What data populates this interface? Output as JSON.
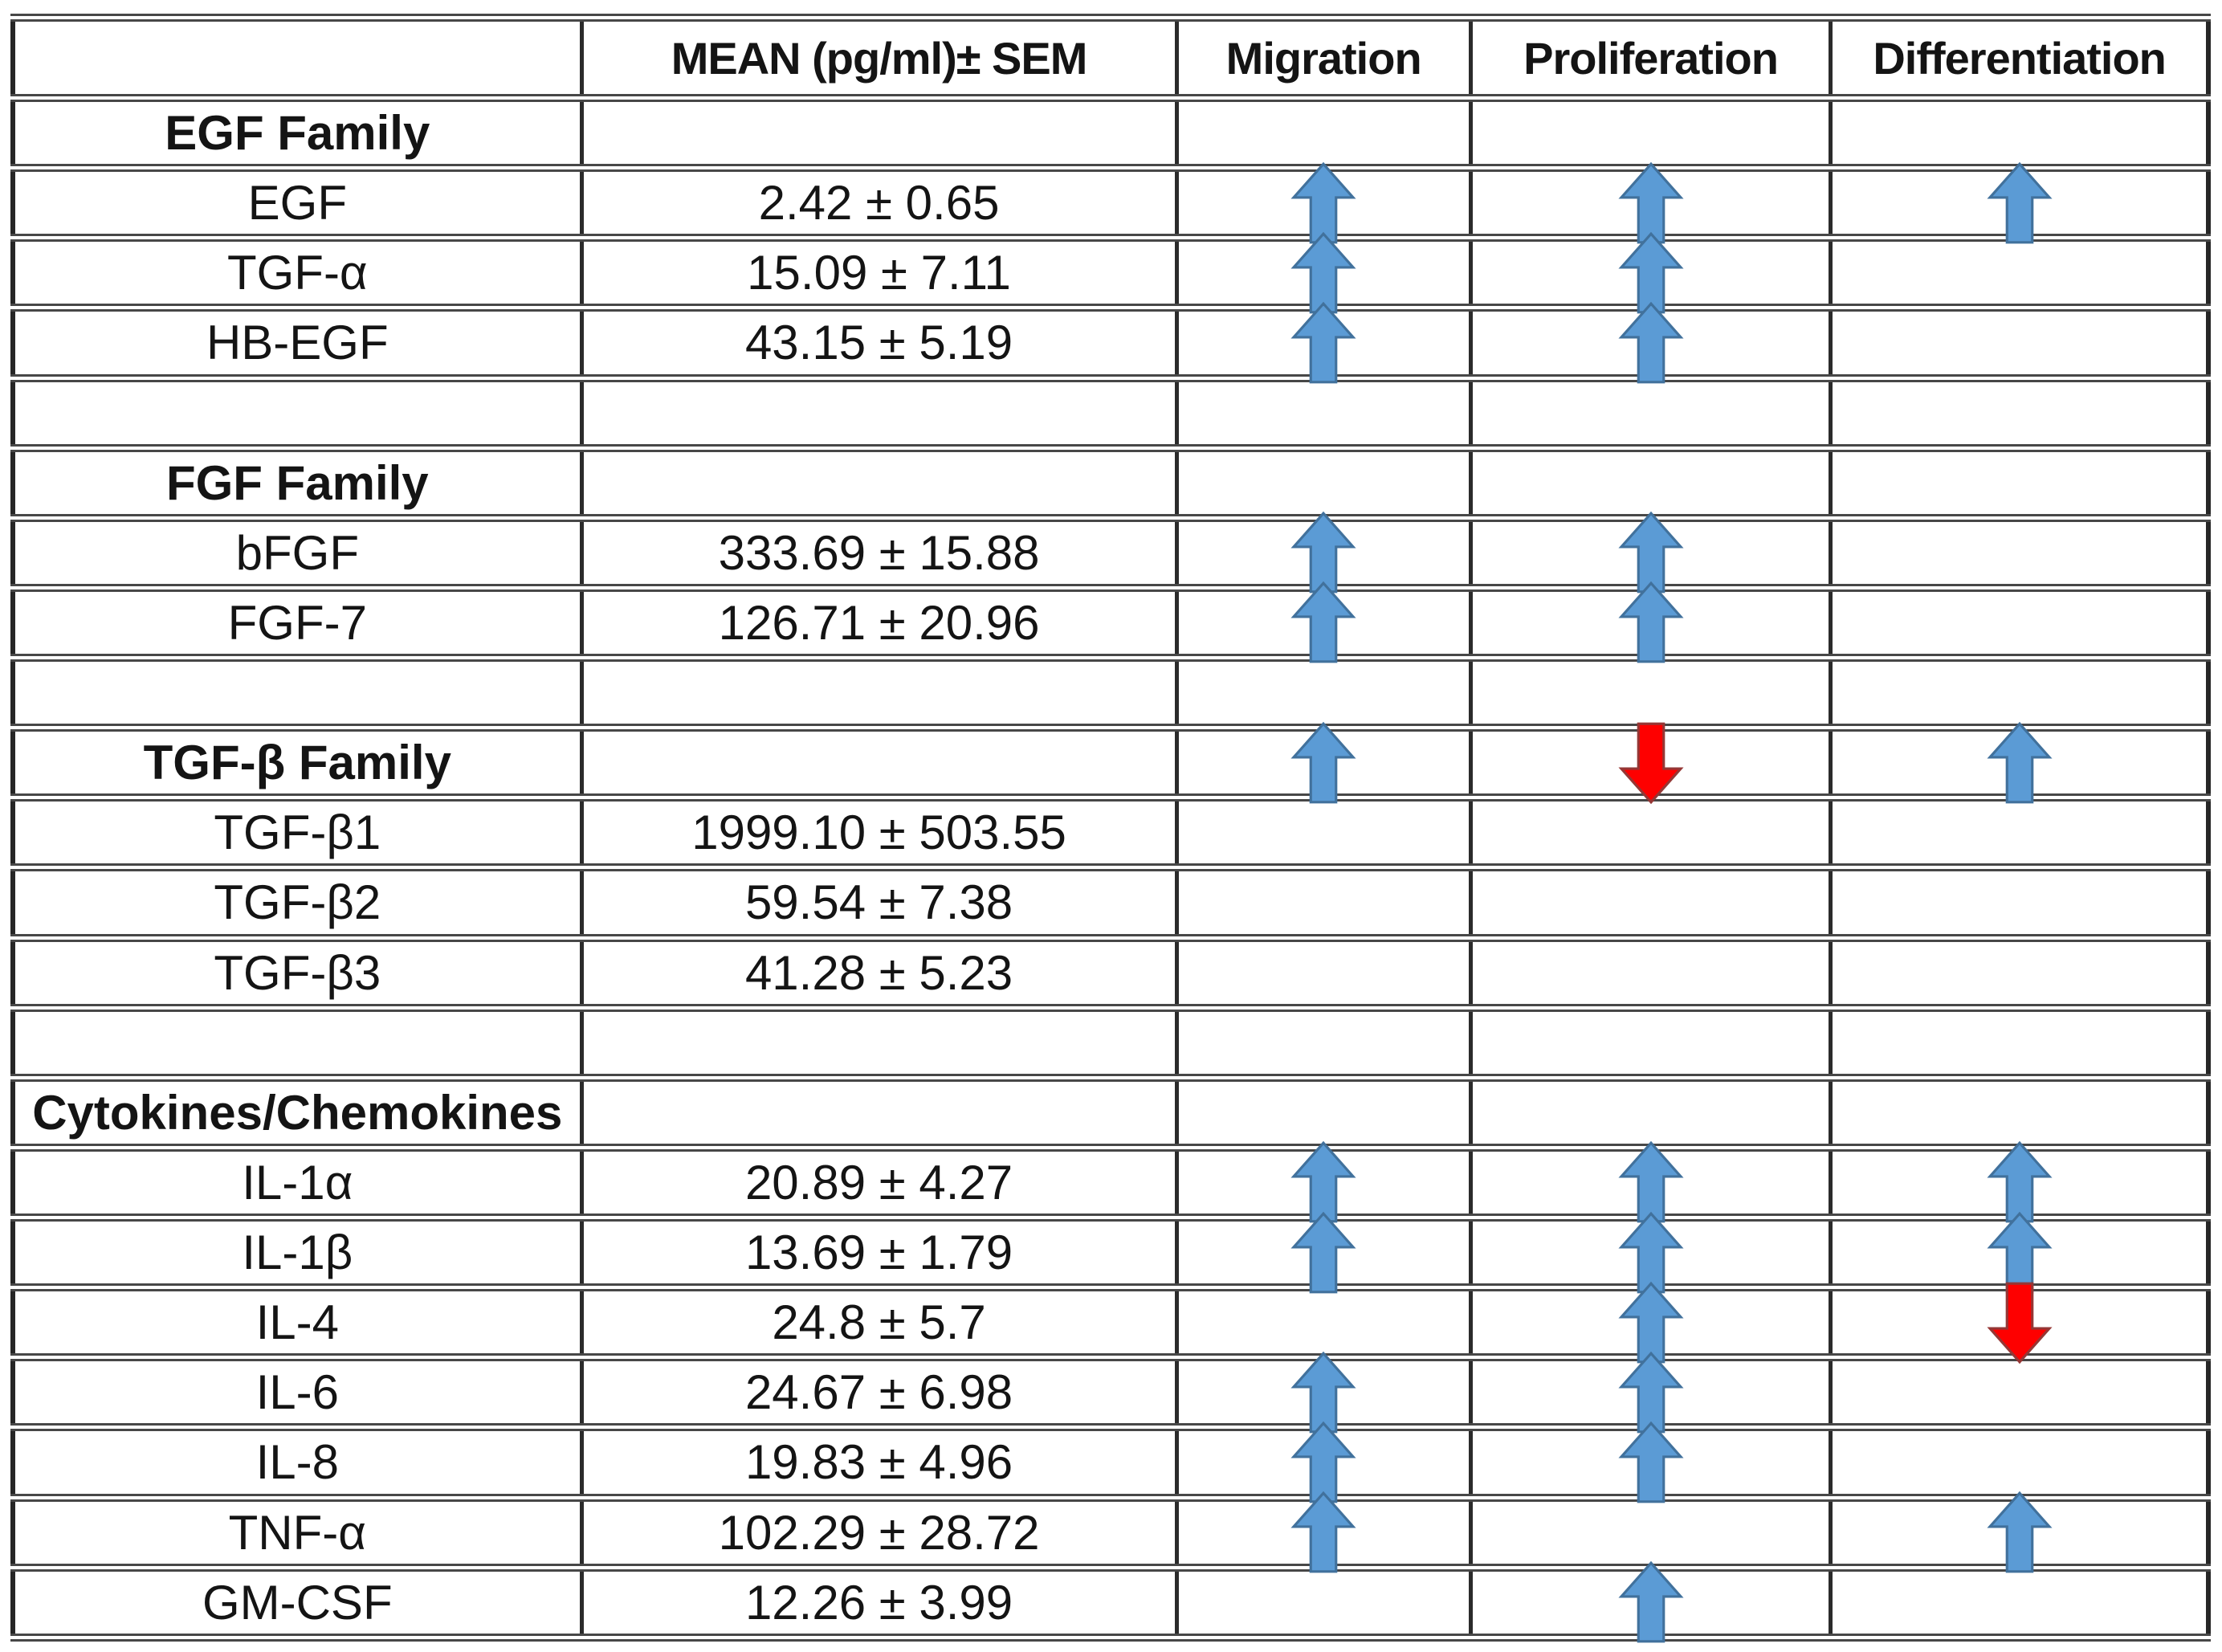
{
  "table": {
    "columns": [
      "",
      "MEAN (pg/ml)± SEM",
      "Migration",
      "Proliferation",
      "Differentiation"
    ],
    "rows": [
      {
        "style": "section",
        "label": "EGF Family",
        "mean": "",
        "migration": "",
        "proliferation": "",
        "differentiation": ""
      },
      {
        "style": "item",
        "label": "EGF",
        "mean": "2.42 ± 0.65",
        "migration": "up",
        "proliferation": "up",
        "differentiation": "up"
      },
      {
        "style": "item",
        "label": "TGF-α",
        "mean": "15.09 ± 7.11",
        "migration": "up",
        "proliferation": "up",
        "differentiation": ""
      },
      {
        "style": "item",
        "label": "HB-EGF",
        "mean": "43.15 ± 5.19",
        "migration": "up",
        "proliferation": "up",
        "differentiation": ""
      },
      {
        "style": "blank",
        "label": "",
        "mean": "",
        "migration": "",
        "proliferation": "",
        "differentiation": ""
      },
      {
        "style": "section",
        "label": "FGF Family",
        "mean": "",
        "migration": "",
        "proliferation": "",
        "differentiation": ""
      },
      {
        "style": "item",
        "label": "bFGF",
        "mean": "333.69 ± 15.88",
        "migration": "up",
        "proliferation": "up",
        "differentiation": ""
      },
      {
        "style": "item",
        "label": "FGF-7",
        "mean": "126.71 ± 20.96",
        "migration": "up",
        "proliferation": "up",
        "differentiation": ""
      },
      {
        "style": "blank",
        "label": "",
        "mean": "",
        "migration": "",
        "proliferation": "",
        "differentiation": ""
      },
      {
        "style": "section",
        "label": "TGF-β Family",
        "mean": "",
        "migration": "up",
        "proliferation": "down",
        "differentiation": "up"
      },
      {
        "style": "item",
        "label": "TGF-β1",
        "mean": "1999.10 ± 503.55",
        "migration": "",
        "proliferation": "",
        "differentiation": ""
      },
      {
        "style": "item",
        "label": "TGF-β2",
        "mean": "59.54 ± 7.38",
        "migration": "",
        "proliferation": "",
        "differentiation": ""
      },
      {
        "style": "item",
        "label": "TGF-β3",
        "mean": "41.28 ± 5.23",
        "migration": "",
        "proliferation": "",
        "differentiation": ""
      },
      {
        "style": "blank",
        "label": "",
        "mean": "",
        "migration": "",
        "proliferation": "",
        "differentiation": ""
      },
      {
        "style": "section",
        "label": "Cytokines/Chemokines",
        "mean": "",
        "migration": "",
        "proliferation": "",
        "differentiation": ""
      },
      {
        "style": "item",
        "label": "IL-1α",
        "mean": "20.89 ± 4.27",
        "migration": "up",
        "proliferation": "up",
        "differentiation": "up"
      },
      {
        "style": "item",
        "label": "IL-1β",
        "mean": "13.69 ± 1.79",
        "migration": "up",
        "proliferation": "up",
        "differentiation": "up"
      },
      {
        "style": "item",
        "label": "IL-4",
        "mean": "24.8 ± 5.7",
        "migration": "",
        "proliferation": "up",
        "differentiation": "down"
      },
      {
        "style": "item",
        "label": "IL-6",
        "mean": "24.67 ± 6.98",
        "migration": "up",
        "proliferation": "up",
        "differentiation": ""
      },
      {
        "style": "item",
        "label": "IL-8",
        "mean": "19.83 ± 4.96",
        "migration": "up",
        "proliferation": "up",
        "differentiation": ""
      },
      {
        "style": "item",
        "label": "TNF-α",
        "mean": "102.29 ± 28.72",
        "migration": "up",
        "proliferation": "",
        "differentiation": "up"
      },
      {
        "style": "item",
        "label": "GM-CSF",
        "mean": "12.26 ± 3.99",
        "migration": "",
        "proliferation": "up",
        "differentiation": ""
      }
    ]
  },
  "icons": {
    "up": "up-arrow-icon",
    "down": "down-arrow-icon"
  },
  "colors": {
    "up_arrow_fill": "#5B9BD5",
    "up_arrow_border": "#41719C",
    "down_arrow_fill": "#FE0000",
    "down_arrow_border": "#953735",
    "grid_line": "#2b2b2b",
    "text": "#141414"
  }
}
